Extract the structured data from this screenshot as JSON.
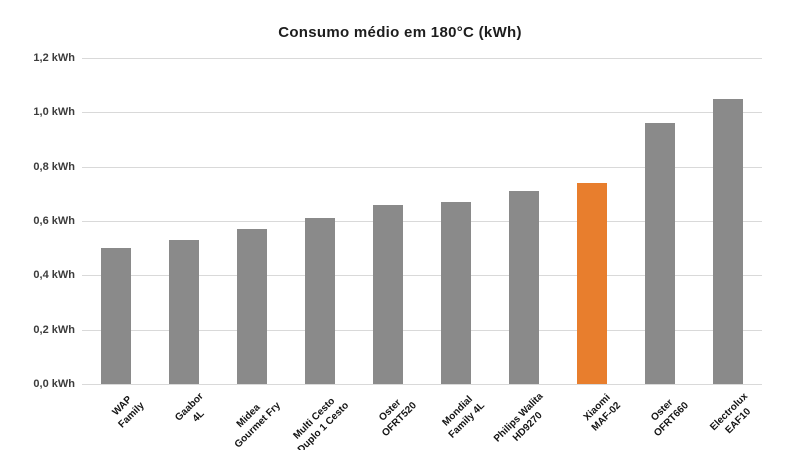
{
  "chart_data": {
    "type": "bar",
    "title": "Consumo médio em 180°C (kWh)",
    "unit": "kWh",
    "categories": [
      [
        "WAP",
        "Family"
      ],
      [
        "Gaabor",
        "4L"
      ],
      [
        "Midea",
        "Gourmet Fry"
      ],
      [
        "Multi Cesto",
        "Duplo 1 Cesto"
      ],
      [
        "Oster",
        "OFRT520"
      ],
      [
        "Mondial",
        "Family 4L"
      ],
      [
        "Philips Walita",
        "HD9270"
      ],
      [
        "Xiaomi",
        "MAF-02"
      ],
      [
        "Oster",
        "OFRT660"
      ],
      [
        "Electrolux",
        "EAF10"
      ]
    ],
    "values": [
      0.5,
      0.53,
      0.57,
      0.61,
      0.66,
      0.67,
      0.71,
      0.74,
      0.96,
      1.05
    ],
    "highlight_index": 7,
    "highlight_label": "Xiaomi MAF-02",
    "yticks": [
      "0,0 kWh",
      "0,2 kWh",
      "0,4 kWh",
      "0,6 kWh",
      "0,8 kWh",
      "1,0 kWh",
      "1,2 kWh"
    ],
    "ylim": [
      0,
      1.2
    ],
    "xlabel": "",
    "ylabel": "",
    "grid": true,
    "legend_position": "none",
    "colors": {
      "bar": "#8A8A8A",
      "highlight": "#E87E2D",
      "gridline": "#D9D9D9",
      "title_text": "#1D1D1D",
      "axis_text": "#3C3C3C",
      "xlabel_text": "#141414",
      "background": "#FFFFFF"
    }
  }
}
